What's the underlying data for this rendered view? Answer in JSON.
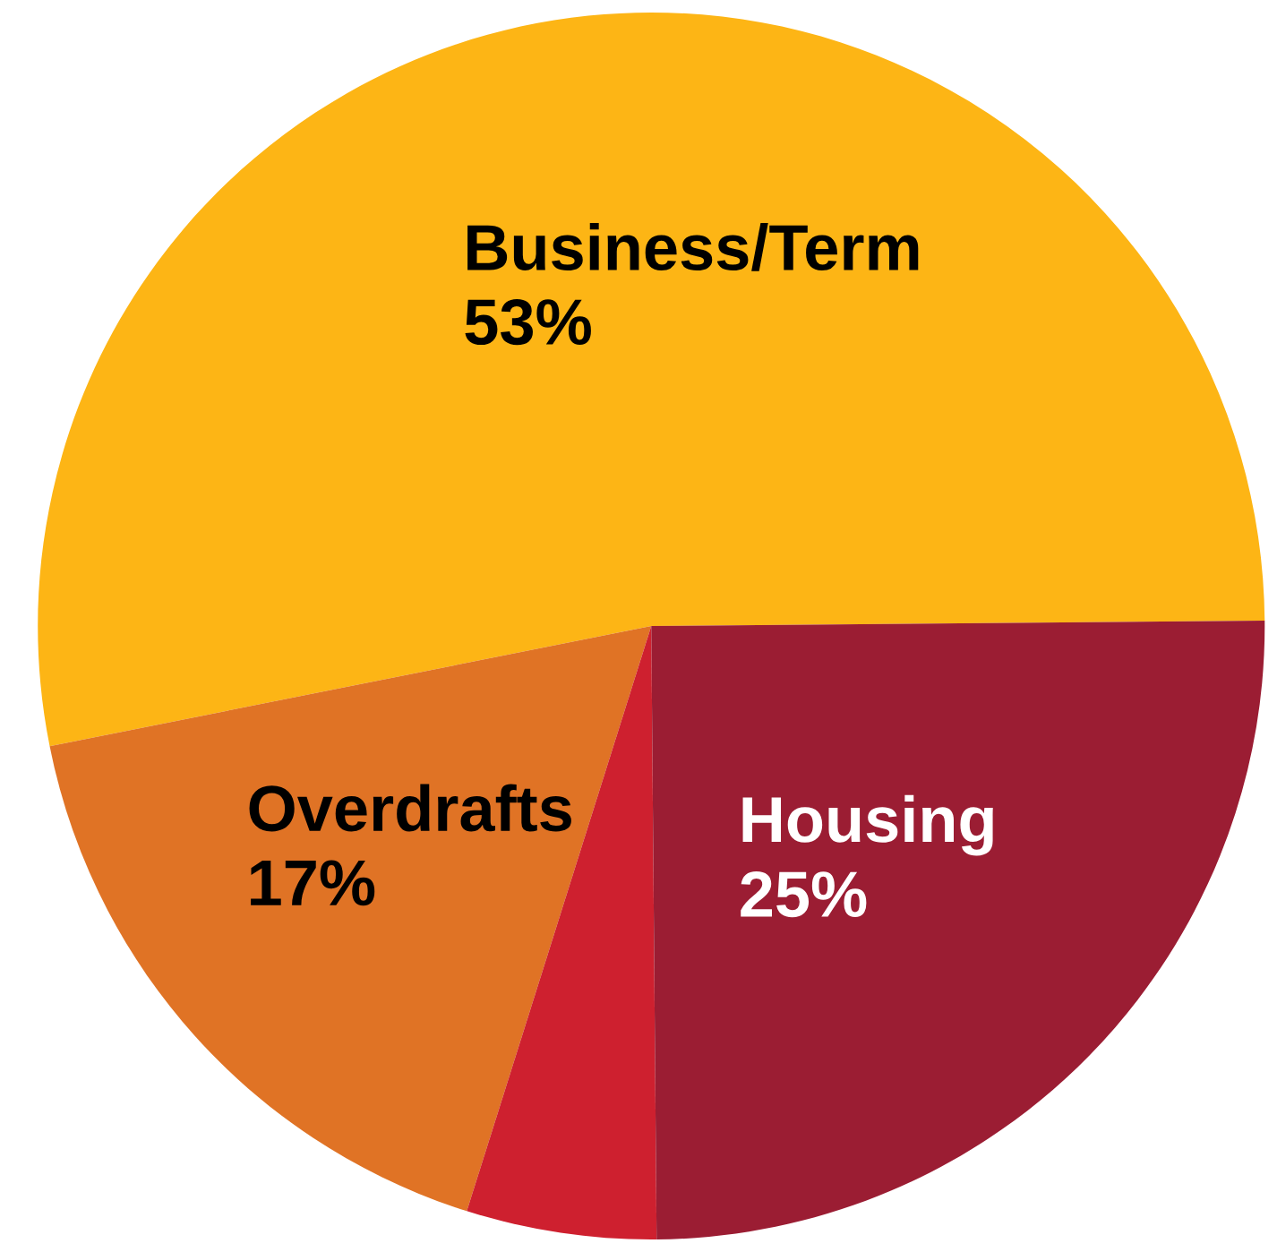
{
  "chart_data": {
    "type": "pie",
    "categories": [
      "Business/Term",
      "Overdrafts",
      null,
      "Housing"
    ],
    "values": [
      53,
      17,
      5,
      25
    ],
    "value_labels": [
      "53%",
      "17%",
      null,
      "25%"
    ],
    "colors": [
      "#fdb515",
      "#e07325",
      "#ce202f",
      "#9b1d33"
    ],
    "legend": false
  }
}
